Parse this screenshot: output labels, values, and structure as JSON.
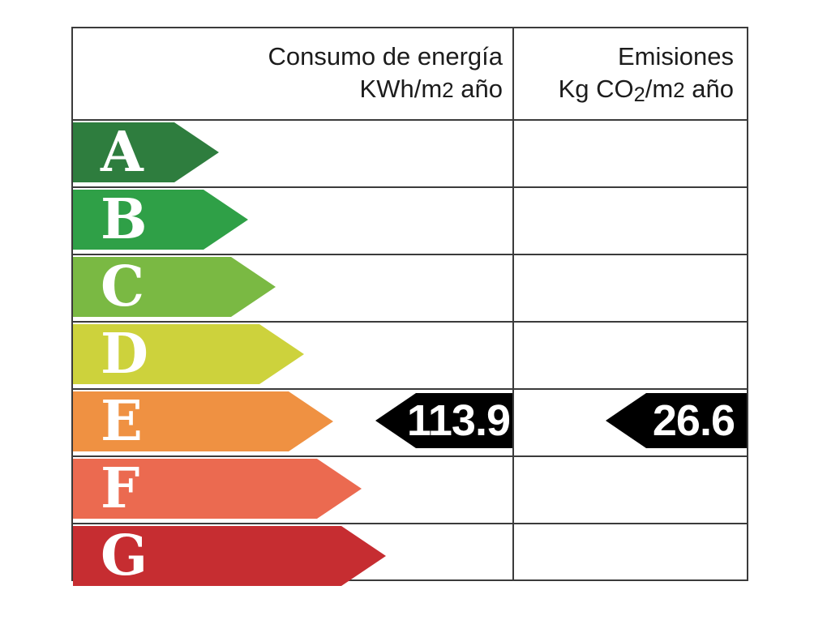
{
  "chart_data": {
    "type": "bar",
    "chart_kind": "energy-efficiency-rating-label",
    "columns": [
      {
        "id": "consumo",
        "label": "Consumo de energía KWh/m2 año"
      },
      {
        "id": "emisiones",
        "label": "Emisiones Kg CO2/m2 año"
      }
    ],
    "categories": [
      "A",
      "B",
      "C",
      "D",
      "E",
      "F",
      "G"
    ],
    "ratings": [
      {
        "letter": "A",
        "color": "#2e7d3e",
        "arrow_width": 180
      },
      {
        "letter": "B",
        "color": "#2fa047",
        "arrow_width": 216
      },
      {
        "letter": "C",
        "color": "#7ab943",
        "arrow_width": 250
      },
      {
        "letter": "D",
        "color": "#cdd23c",
        "arrow_width": 285
      },
      {
        "letter": "E",
        "color": "#ef9142",
        "arrow_width": 321
      },
      {
        "letter": "F",
        "color": "#eb6a50",
        "arrow_width": 356
      },
      {
        "letter": "G",
        "color": "#c62d31",
        "arrow_width": 386
      }
    ],
    "selected_rating": "E",
    "values": {
      "consumo": 113.9,
      "emisiones": 26.6
    },
    "legend_position": "none",
    "grid": true
  },
  "header": {
    "col1": {
      "line1": "Consumo de energía",
      "line2_pre": "KWh/m",
      "line2_sup": "2",
      "line2_post": " año"
    },
    "col2": {
      "line1": "Emisiones",
      "line2_pre": "Kg CO",
      "line2_sub": "2",
      "line2_mid": "/m",
      "line2_sup": "2",
      "line2_post": " año"
    }
  },
  "indicators": {
    "consumo": {
      "value": "113.9",
      "row": "E"
    },
    "emisiones": {
      "value": "26.6",
      "row": "E"
    }
  },
  "colors": {
    "border": "#3b3b3b",
    "header_text": "#1c1c1c",
    "indicator_bg": "#000000",
    "indicator_text": "#ffffff",
    "letter_text": "#ffffff"
  }
}
